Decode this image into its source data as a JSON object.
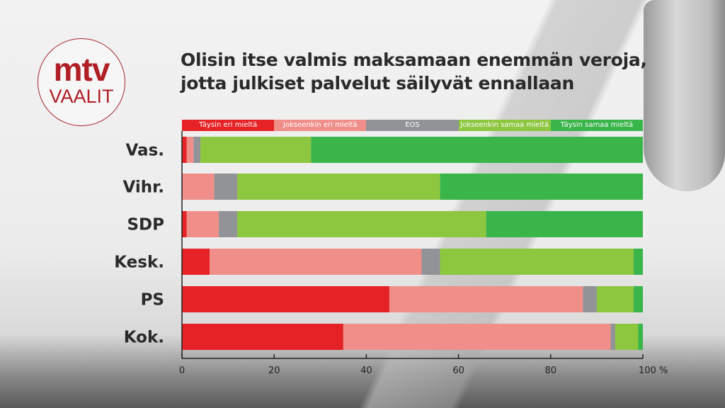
{
  "logo": {
    "top": "mtv",
    "bottom": "VAALIT"
  },
  "title": [
    "Olisin itse valmis maksamaan enemmän veroja,",
    "jotta julkiset palvelut säilyvät ennallaan"
  ],
  "chart_data": {
    "type": "bar",
    "orientation": "horizontal",
    "stacked": true,
    "title": "Olisin itse valmis maksamaan enemmän veroja, jotta julkiset palvelut säilyvät ennallaan",
    "categories": [
      "Vas.",
      "Vihr.",
      "SDP",
      "Kesk.",
      "PS",
      "Kok."
    ],
    "series": [
      {
        "name": "Täysin eri mieltä",
        "color": "#e52226",
        "values": [
          1,
          0,
          1,
          6,
          45,
          35
        ]
      },
      {
        "name": "Jokseenkin eri mieltä",
        "color": "#f08e8a",
        "values": [
          1.5,
          7,
          7,
          46,
          42,
          58
        ]
      },
      {
        "name": "EOS",
        "color": "#929396",
        "values": [
          1.5,
          5,
          4,
          4,
          3,
          1
        ]
      },
      {
        "name": "Jokseenkin samaa mieltä",
        "color": "#8dc63f",
        "values": [
          24,
          44,
          54,
          42,
          8,
          5
        ]
      },
      {
        "name": "Täysin  samaa mieltä",
        "color": "#39b54a",
        "values": [
          72,
          44,
          34,
          2,
          2,
          1
        ]
      }
    ],
    "xlim": [
      0,
      100
    ],
    "xticks": [
      "0",
      "20",
      "40",
      "60",
      "80",
      "100 %"
    ],
    "legend_position": "top",
    "grid": false
  }
}
